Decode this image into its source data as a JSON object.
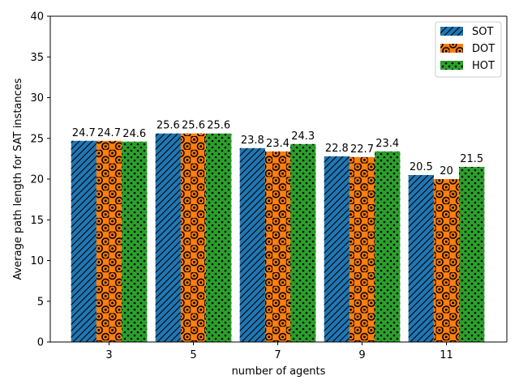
{
  "chart_data": {
    "type": "bar",
    "categories": [
      "3",
      "5",
      "7",
      "9",
      "11"
    ],
    "series": [
      {
        "name": "SOT",
        "values": [
          24.7,
          25.6,
          23.8,
          22.8,
          20.5
        ],
        "value_labels": [
          "24.7",
          "25.6",
          "23.8",
          "22.8",
          "20.5"
        ],
        "color": "#1f77b4",
        "hatch": "diagonal-lines"
      },
      {
        "name": "DOT",
        "values": [
          24.7,
          25.6,
          23.4,
          22.7,
          20
        ],
        "value_labels": [
          "24.7",
          "25.6",
          "23.4",
          "22.7",
          "20"
        ],
        "color": "#ff7f0e",
        "hatch": "rings"
      },
      {
        "name": "HOT",
        "values": [
          24.6,
          25.6,
          24.3,
          23.4,
          21.5
        ],
        "value_labels": [
          "24.6",
          "25.6",
          "24.3",
          "23.4",
          "21.5"
        ],
        "color": "#2ca02c",
        "hatch": "dots"
      }
    ],
    "title": "",
    "xlabel": "number of agents",
    "ylabel": "Average path length for SAT instances",
    "ylim": [
      0,
      40
    ],
    "yticks": [
      0,
      5,
      10,
      15,
      20,
      25,
      30,
      35,
      40
    ],
    "grid": false,
    "legend_position": "top-right"
  }
}
